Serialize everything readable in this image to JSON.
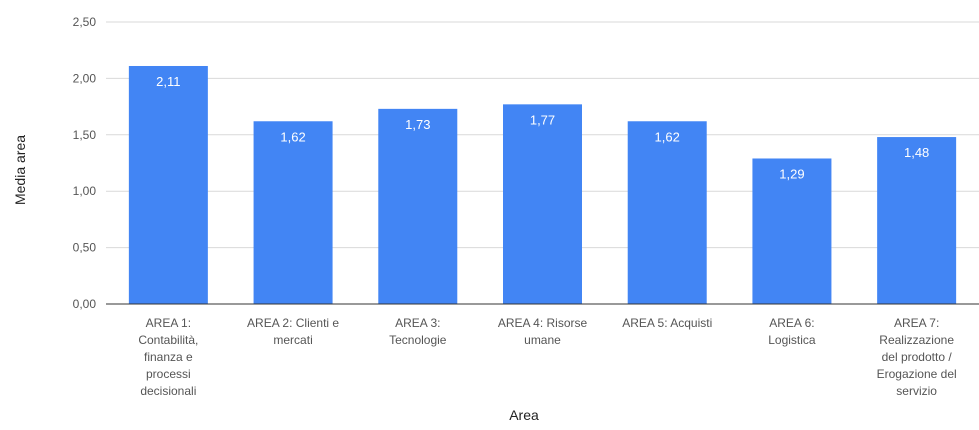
{
  "chart_data": {
    "type": "bar",
    "title": "",
    "xlabel": "Area",
    "ylabel": "Media area",
    "ylim": [
      0,
      2.5
    ],
    "yticks": [
      "0,00",
      "0,50",
      "1,00",
      "1,50",
      "2,00",
      "2,50"
    ],
    "ytick_values": [
      0,
      0.5,
      1.0,
      1.5,
      2.0,
      2.5
    ],
    "grid": true,
    "legend": "none",
    "bar_color": "#4285F4",
    "categories": [
      [
        "AREA 1:",
        "Contabilità,",
        "finanza e",
        "processi",
        "decisionali"
      ],
      [
        "AREA 2: Clienti e",
        "mercati"
      ],
      [
        "AREA 3:",
        "Tecnologie"
      ],
      [
        "AREA 4: Risorse",
        "umane"
      ],
      [
        "AREA 5: Acquisti"
      ],
      [
        "AREA 6:",
        "Logistica"
      ],
      [
        "AREA 7:",
        "Realizzazione",
        "del prodotto /",
        "Erogazione del",
        "servizio"
      ]
    ],
    "values": [
      2.11,
      1.62,
      1.73,
      1.77,
      1.62,
      1.29,
      1.48
    ],
    "value_labels": [
      "2,11",
      "1,62",
      "1,73",
      "1,77",
      "1,62",
      "1,29",
      "1,48"
    ]
  }
}
